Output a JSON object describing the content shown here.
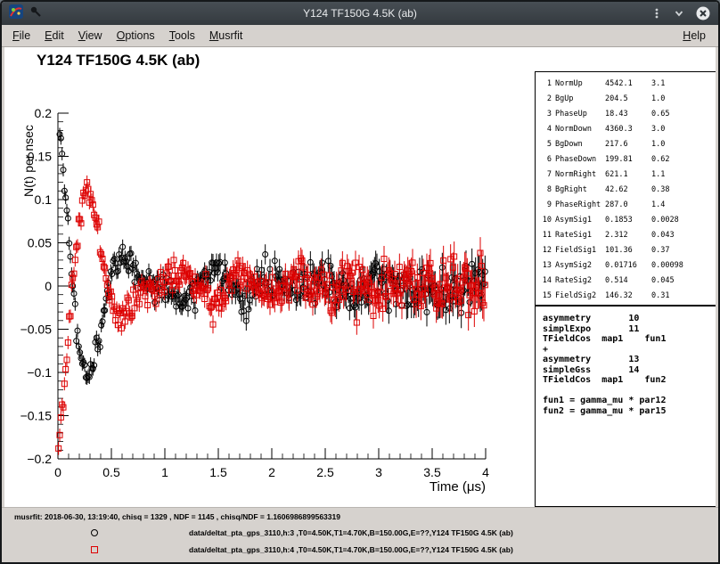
{
  "window": {
    "title": "Y124 TF150G 4.5K (ab)"
  },
  "menubar": {
    "items": [
      "File",
      "Edit",
      "View",
      "Options",
      "Tools",
      "Musrfit"
    ],
    "help": "Help"
  },
  "canvas": {
    "title": "Y124 TF150G 4.5K (ab)"
  },
  "param_table": {
    "rows": [
      [
        "1",
        "NormUp",
        "4542.1",
        "3.1"
      ],
      [
        "2",
        "BgUp",
        "204.5",
        "1.0"
      ],
      [
        "3",
        "PhaseUp",
        "18.43",
        "0.65"
      ],
      [
        "4",
        "NormDown",
        "4360.3",
        "3.0"
      ],
      [
        "5",
        "BgDown",
        "217.6",
        "1.0"
      ],
      [
        "6",
        "PhaseDown",
        "199.81",
        "0.62"
      ],
      [
        "7",
        "NormRight",
        "621.1",
        "1.1"
      ],
      [
        "8",
        "BgRight",
        "42.62",
        "0.38"
      ],
      [
        "9",
        "PhaseRight",
        "287.0",
        "1.4"
      ],
      [
        "10",
        "AsymSig1",
        "0.1853",
        "0.0028"
      ],
      [
        "11",
        "RateSig1",
        "2.312",
        "0.043"
      ],
      [
        "12",
        "FieldSig1",
        "101.36",
        "0.37"
      ],
      [
        "13",
        "AsymSig2",
        "0.01716",
        "0.00098"
      ],
      [
        "14",
        "RateSig2",
        "0.514",
        "0.045"
      ],
      [
        "15",
        "FieldSig2",
        "146.32",
        "0.31"
      ]
    ]
  },
  "theory": {
    "lines": [
      "asymmetry       10",
      "simplExpo       11",
      "TFieldCos  map1    fun1",
      "+",
      "asymmetry       13",
      "simpleGss       14",
      "TFieldCos  map1    fun2",
      "",
      "fun1 = gamma_mu * par12",
      "fun2 = gamma_mu * par15"
    ]
  },
  "status": {
    "fit_info": "musrfit: 2018-06-30, 13:19:40, chisq = 1329 , NDF = 1145 , chisq/NDF = 1.1606986899563319",
    "legend": [
      {
        "marker": "open-circle",
        "color": "#000000",
        "text": "data/deltat_pta_gps_3110,h:3 ,T0=4.50K,T1=4.70K,B=150.00G,E=??,Y124 TF150G 4.5K (ab)"
      },
      {
        "marker": "open-square",
        "color": "#dd0000",
        "text": "data/deltat_pta_gps_3110,h:4 ,T0=4.50K,T1=4.70K,B=150.00G,E=??,Y124 TF150G 4.5K (ab)"
      }
    ]
  },
  "chart_data": {
    "type": "scatter",
    "title": "Y124 TF150G 4.5K (ab)",
    "xlabel": "Time (μs)",
    "ylabel": "N(t) per nsec",
    "xlim": [
      0,
      4
    ],
    "ylim": [
      -0.2,
      0.2
    ],
    "x_ticks": [
      {
        "v": 0,
        "label": "0"
      },
      {
        "v": 0.5,
        "label": "0.5"
      },
      {
        "v": 1,
        "label": "1"
      },
      {
        "v": 1.5,
        "label": "1.5"
      },
      {
        "v": 2,
        "label": "2"
      },
      {
        "v": 2.5,
        "label": "2.5"
      },
      {
        "v": 3,
        "label": "3"
      },
      {
        "v": 3.5,
        "label": "3.5"
      },
      {
        "v": 4,
        "label": "4"
      }
    ],
    "y_ticks": [
      {
        "v": 0.2,
        "label": "0.2"
      },
      {
        "v": 0.15,
        "label": "0.15"
      },
      {
        "v": 0.1,
        "label": "0.1"
      },
      {
        "v": 0.05,
        "label": "0.05"
      },
      {
        "v": 0,
        "label": "0"
      },
      {
        "v": -0.05,
        "label": "−0.05"
      },
      {
        "v": -0.1,
        "label": "−0.1"
      },
      {
        "v": -0.15,
        "label": "−0.15"
      },
      {
        "v": -0.2,
        "label": "−0.2"
      }
    ],
    "x_minor": 0.1,
    "y_minor": 0.01,
    "n_points": 360,
    "noise": {
      "base": 0.0075,
      "tau": 4.4
    },
    "series": [
      {
        "name": "data/deltat_pta_gps_3110,h:3",
        "marker": "open-circle",
        "color": "#000000",
        "seed": 42,
        "model": [
          {
            "asym": 0.1853,
            "relax_rate": 2.312,
            "envelope": "exp",
            "field_G": 101.36,
            "freq_MHz": 1.3736,
            "phase_deg": 18.43
          },
          {
            "asym": 0.01716,
            "relax_rate": 0.514,
            "envelope": "gauss",
            "field_G": 146.32,
            "freq_MHz": 1.983,
            "phase_deg": 18.43
          }
        ]
      },
      {
        "name": "data/deltat_pta_gps_3110,h:4",
        "marker": "open-square",
        "color": "#dd0000",
        "seed": 137,
        "model": [
          {
            "asym": 0.1853,
            "relax_rate": 2.312,
            "envelope": "exp",
            "field_G": 101.36,
            "freq_MHz": 1.3736,
            "phase_deg": 199.81
          },
          {
            "asym": 0.01716,
            "relax_rate": 0.514,
            "envelope": "gauss",
            "field_G": 146.32,
            "freq_MHz": 1.983,
            "phase_deg": 199.81
          }
        ]
      }
    ]
  }
}
